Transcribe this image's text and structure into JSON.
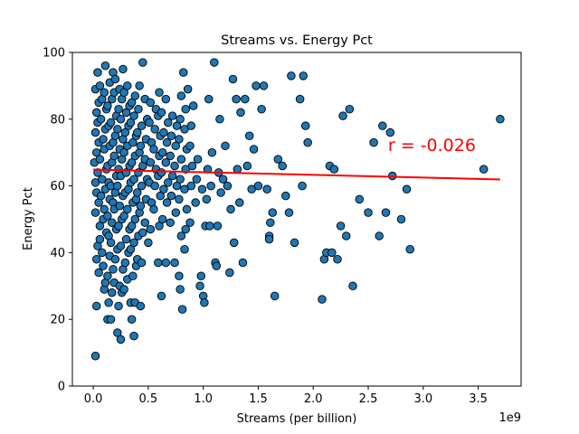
{
  "chart_data": {
    "type": "scatter",
    "title": "Streams vs. Energy Pct",
    "xlabel": "Streams (per billion)",
    "ylabel": "Energy Pct",
    "x_offset_label": "1e9",
    "x_ticks": [
      0.0,
      0.5,
      1.0,
      1.5,
      2.0,
      2.5,
      3.0,
      3.5
    ],
    "x_tick_labels": [
      "0.0",
      "0.5",
      "1.0",
      "1.5",
      "2.0",
      "2.5",
      "3.0",
      "3.5"
    ],
    "y_ticks": [
      0,
      20,
      40,
      60,
      80,
      100
    ],
    "y_tick_labels": [
      "0",
      "20",
      "40",
      "60",
      "80",
      "100"
    ],
    "xlim": [
      -0.19,
      3.89
    ],
    "ylim": [
      0,
      100
    ],
    "grid": false,
    "point_color": "#1f77b4",
    "point_edge_color": "#000000",
    "fit_line": {
      "slope": -0.8,
      "intercept": 64.9,
      "x_range": [
        0.0,
        3.7
      ],
      "color": "#ff0000"
    },
    "annotation": {
      "text": "r = -0.026",
      "x": 2.68,
      "y": 70.5,
      "color": "#ff0000"
    },
    "points": [
      [
        0.02,
        9
      ],
      [
        0.03,
        24
      ],
      [
        0.05,
        34
      ],
      [
        0.03,
        38
      ],
      [
        0.04,
        42
      ],
      [
        0.06,
        48
      ],
      [
        0.02,
        52
      ],
      [
        0.05,
        55
      ],
      [
        0.03,
        58
      ],
      [
        0.02,
        61
      ],
      [
        0.04,
        64
      ],
      [
        0.01,
        67
      ],
      [
        0.03,
        70
      ],
      [
        0.05,
        73
      ],
      [
        0.02,
        76
      ],
      [
        0.04,
        79
      ],
      [
        0.03,
        82
      ],
      [
        0.05,
        85
      ],
      [
        0.02,
        89
      ],
      [
        0.04,
        94
      ],
      [
        0.06,
        44
      ],
      [
        0.07,
        57
      ],
      [
        0.08,
        62
      ],
      [
        0.06,
        68
      ],
      [
        0.09,
        74
      ],
      [
        0.07,
        80
      ],
      [
        0.08,
        86
      ],
      [
        0.06,
        90
      ],
      [
        0.09,
        50
      ],
      [
        0.08,
        40
      ],
      [
        0.1,
        29
      ],
      [
        0.11,
        31
      ],
      [
        0.09,
        36
      ],
      [
        0.12,
        46
      ],
      [
        0.1,
        53
      ],
      [
        0.11,
        59
      ],
      [
        0.12,
        65
      ],
      [
        0.1,
        71
      ],
      [
        0.11,
        77
      ],
      [
        0.12,
        83
      ],
      [
        0.1,
        88
      ],
      [
        0.11,
        96
      ],
      [
        0.13,
        20
      ],
      [
        0.14,
        25
      ],
      [
        0.13,
        33
      ],
      [
        0.15,
        39
      ],
      [
        0.14,
        45
      ],
      [
        0.13,
        51
      ],
      [
        0.15,
        56
      ],
      [
        0.14,
        61
      ],
      [
        0.13,
        66
      ],
      [
        0.15,
        72
      ],
      [
        0.14,
        78
      ],
      [
        0.13,
        84
      ],
      [
        0.15,
        91
      ],
      [
        0.16,
        20
      ],
      [
        0.17,
        28
      ],
      [
        0.18,
        35
      ],
      [
        0.16,
        43
      ],
      [
        0.17,
        49
      ],
      [
        0.18,
        55
      ],
      [
        0.16,
        60
      ],
      [
        0.17,
        67
      ],
      [
        0.18,
        73
      ],
      [
        0.16,
        79
      ],
      [
        0.17,
        86
      ],
      [
        0.18,
        94
      ],
      [
        0.19,
        31
      ],
      [
        0.2,
        38
      ],
      [
        0.21,
        47
      ],
      [
        0.19,
        53
      ],
      [
        0.2,
        58
      ],
      [
        0.21,
        63
      ],
      [
        0.19,
        69
      ],
      [
        0.2,
        75
      ],
      [
        0.21,
        81
      ],
      [
        0.19,
        88
      ],
      [
        0.2,
        92
      ],
      [
        0.22,
        16
      ],
      [
        0.23,
        24
      ],
      [
        0.24,
        30
      ],
      [
        0.22,
        41
      ],
      [
        0.23,
        48
      ],
      [
        0.24,
        54
      ],
      [
        0.22,
        60
      ],
      [
        0.23,
        65
      ],
      [
        0.24,
        71
      ],
      [
        0.22,
        77
      ],
      [
        0.23,
        83
      ],
      [
        0.24,
        89
      ],
      [
        0.25,
        14
      ],
      [
        0.26,
        28
      ],
      [
        0.27,
        35
      ],
      [
        0.25,
        42
      ],
      [
        0.26,
        50
      ],
      [
        0.27,
        57
      ],
      [
        0.25,
        63
      ],
      [
        0.26,
        68
      ],
      [
        0.27,
        74
      ],
      [
        0.25,
        80
      ],
      [
        0.26,
        86
      ],
      [
        0.27,
        95
      ],
      [
        0.28,
        29
      ],
      [
        0.29,
        37
      ],
      [
        0.3,
        44
      ],
      [
        0.28,
        51
      ],
      [
        0.29,
        58
      ],
      [
        0.3,
        64
      ],
      [
        0.28,
        70
      ],
      [
        0.29,
        76
      ],
      [
        0.3,
        82
      ],
      [
        0.28,
        88
      ],
      [
        0.31,
        32
      ],
      [
        0.32,
        40
      ],
      [
        0.33,
        47
      ],
      [
        0.31,
        53
      ],
      [
        0.32,
        59
      ],
      [
        0.33,
        66
      ],
      [
        0.31,
        72
      ],
      [
        0.32,
        78
      ],
      [
        0.33,
        84
      ],
      [
        0.31,
        90
      ],
      [
        0.34,
        25
      ],
      [
        0.35,
        20
      ],
      [
        0.36,
        33
      ],
      [
        0.34,
        41
      ],
      [
        0.35,
        48
      ],
      [
        0.36,
        55
      ],
      [
        0.34,
        61
      ],
      [
        0.35,
        67
      ],
      [
        0.36,
        73
      ],
      [
        0.34,
        79
      ],
      [
        0.35,
        85
      ],
      [
        0.37,
        15
      ],
      [
        0.38,
        25
      ],
      [
        0.39,
        36
      ],
      [
        0.37,
        43
      ],
      [
        0.38,
        50
      ],
      [
        0.39,
        56
      ],
      [
        0.37,
        62
      ],
      [
        0.38,
        69
      ],
      [
        0.39,
        75
      ],
      [
        0.37,
        81
      ],
      [
        0.38,
        87
      ],
      [
        0.4,
        38
      ],
      [
        0.41,
        45
      ],
      [
        0.42,
        52
      ],
      [
        0.4,
        58
      ],
      [
        0.41,
        64
      ],
      [
        0.42,
        70
      ],
      [
        0.4,
        76
      ],
      [
        0.41,
        83
      ],
      [
        0.42,
        90
      ],
      [
        0.43,
        24
      ],
      [
        0.44,
        37
      ],
      [
        0.45,
        46
      ],
      [
        0.43,
        54
      ],
      [
        0.44,
        60
      ],
      [
        0.45,
        66
      ],
      [
        0.43,
        72
      ],
      [
        0.44,
        78
      ],
      [
        0.45,
        97
      ],
      [
        0.47,
        49
      ],
      [
        0.48,
        56
      ],
      [
        0.49,
        62
      ],
      [
        0.47,
        68
      ],
      [
        0.48,
        74
      ],
      [
        0.49,
        80
      ],
      [
        0.47,
        86
      ],
      [
        0.5,
        43
      ],
      [
        0.52,
        47
      ],
      [
        0.53,
        55
      ],
      [
        0.51,
        61
      ],
      [
        0.52,
        67
      ],
      [
        0.53,
        73
      ],
      [
        0.51,
        79
      ],
      [
        0.52,
        85
      ],
      [
        0.55,
        53
      ],
      [
        0.56,
        60
      ],
      [
        0.57,
        65
      ],
      [
        0.55,
        71
      ],
      [
        0.56,
        77
      ],
      [
        0.57,
        83
      ],
      [
        0.59,
        37
      ],
      [
        0.6,
        48
      ],
      [
        0.61,
        57
      ],
      [
        0.59,
        63
      ],
      [
        0.6,
        69
      ],
      [
        0.61,
        75
      ],
      [
        0.59,
        81
      ],
      [
        0.6,
        88
      ],
      [
        0.62,
        27
      ],
      [
        0.63,
        50
      ],
      [
        0.64,
        59
      ],
      [
        0.62,
        64
      ],
      [
        0.63,
        70
      ],
      [
        0.64,
        76
      ],
      [
        0.62,
        82
      ],
      [
        0.66,
        37
      ],
      [
        0.67,
        55
      ],
      [
        0.68,
        61
      ],
      [
        0.66,
        67
      ],
      [
        0.67,
        73
      ],
      [
        0.68,
        79
      ],
      [
        0.66,
        86
      ],
      [
        0.7,
        49
      ],
      [
        0.71,
        57
      ],
      [
        0.72,
        63
      ],
      [
        0.7,
        69
      ],
      [
        0.71,
        75
      ],
      [
        0.72,
        81
      ],
      [
        0.74,
        37
      ],
      [
        0.75,
        52
      ],
      [
        0.76,
        60
      ],
      [
        0.74,
        66
      ],
      [
        0.75,
        72
      ],
      [
        0.76,
        78
      ],
      [
        0.78,
        33
      ],
      [
        0.79,
        29
      ],
      [
        0.8,
        45
      ],
      [
        0.78,
        56
      ],
      [
        0.79,
        62
      ],
      [
        0.8,
        68
      ],
      [
        0.78,
        74
      ],
      [
        0.79,
        80
      ],
      [
        0.8,
        87
      ],
      [
        0.81,
        23
      ],
      [
        0.82,
        94
      ],
      [
        0.83,
        41
      ],
      [
        0.84,
        47
      ],
      [
        0.85,
        53
      ],
      [
        0.83,
        59
      ],
      [
        0.84,
        65
      ],
      [
        0.85,
        71
      ],
      [
        0.83,
        77
      ],
      [
        0.84,
        83
      ],
      [
        0.86,
        89
      ],
      [
        0.88,
        49
      ],
      [
        0.89,
        60
      ],
      [
        0.9,
        66
      ],
      [
        0.88,
        72
      ],
      [
        0.89,
        78
      ],
      [
        0.91,
        84
      ],
      [
        0.93,
        55
      ],
      [
        0.94,
        62
      ],
      [
        0.95,
        68
      ],
      [
        0.97,
        30
      ],
      [
        0.98,
        33
      ],
      [
        0.99,
        59
      ],
      [
        1.0,
        27
      ],
      [
        1.01,
        25
      ],
      [
        1.02,
        48
      ],
      [
        1.03,
        56
      ],
      [
        1.04,
        65
      ],
      [
        1.05,
        86
      ],
      [
        1.06,
        48
      ],
      [
        1.07,
        60
      ],
      [
        1.08,
        70
      ],
      [
        1.1,
        97
      ],
      [
        1.11,
        37
      ],
      [
        1.12,
        36
      ],
      [
        1.13,
        48
      ],
      [
        1.14,
        64
      ],
      [
        1.15,
        80
      ],
      [
        1.16,
        58
      ],
      [
        1.18,
        62
      ],
      [
        1.2,
        72
      ],
      [
        1.22,
        60
      ],
      [
        1.24,
        34
      ],
      [
        1.25,
        53
      ],
      [
        1.27,
        92
      ],
      [
        1.28,
        43
      ],
      [
        1.3,
        86
      ],
      [
        1.31,
        65
      ],
      [
        1.33,
        55
      ],
      [
        1.34,
        82
      ],
      [
        1.36,
        37
      ],
      [
        1.38,
        86
      ],
      [
        1.4,
        66
      ],
      [
        1.42,
        75
      ],
      [
        1.44,
        59
      ],
      [
        1.46,
        71
      ],
      [
        1.48,
        90
      ],
      [
        1.5,
        60
      ],
      [
        1.53,
        83
      ],
      [
        1.55,
        90
      ],
      [
        1.58,
        59
      ],
      [
        1.6,
        45
      ],
      [
        1.6,
        44
      ],
      [
        1.61,
        49
      ],
      [
        1.63,
        52
      ],
      [
        1.65,
        27
      ],
      [
        1.68,
        68
      ],
      [
        1.72,
        66
      ],
      [
        1.75,
        57
      ],
      [
        1.78,
        52
      ],
      [
        1.8,
        93
      ],
      [
        1.83,
        43
      ],
      [
        1.88,
        86
      ],
      [
        1.9,
        60
      ],
      [
        1.91,
        93
      ],
      [
        1.93,
        78
      ],
      [
        1.95,
        73
      ],
      [
        2.08,
        26
      ],
      [
        2.1,
        38
      ],
      [
        2.12,
        40
      ],
      [
        2.15,
        66
      ],
      [
        2.17,
        40
      ],
      [
        2.19,
        65
      ],
      [
        2.22,
        38
      ],
      [
        2.25,
        48
      ],
      [
        2.27,
        81
      ],
      [
        2.3,
        45
      ],
      [
        2.33,
        83
      ],
      [
        2.36,
        30
      ],
      [
        2.42,
        56
      ],
      [
        2.5,
        52
      ],
      [
        2.55,
        73
      ],
      [
        2.6,
        45
      ],
      [
        2.63,
        78
      ],
      [
        2.66,
        52
      ],
      [
        2.7,
        76
      ],
      [
        2.72,
        63
      ],
      [
        2.85,
        59
      ],
      [
        2.8,
        50
      ],
      [
        2.88,
        41
      ],
      [
        3.55,
        65
      ],
      [
        3.7,
        80
      ]
    ]
  }
}
